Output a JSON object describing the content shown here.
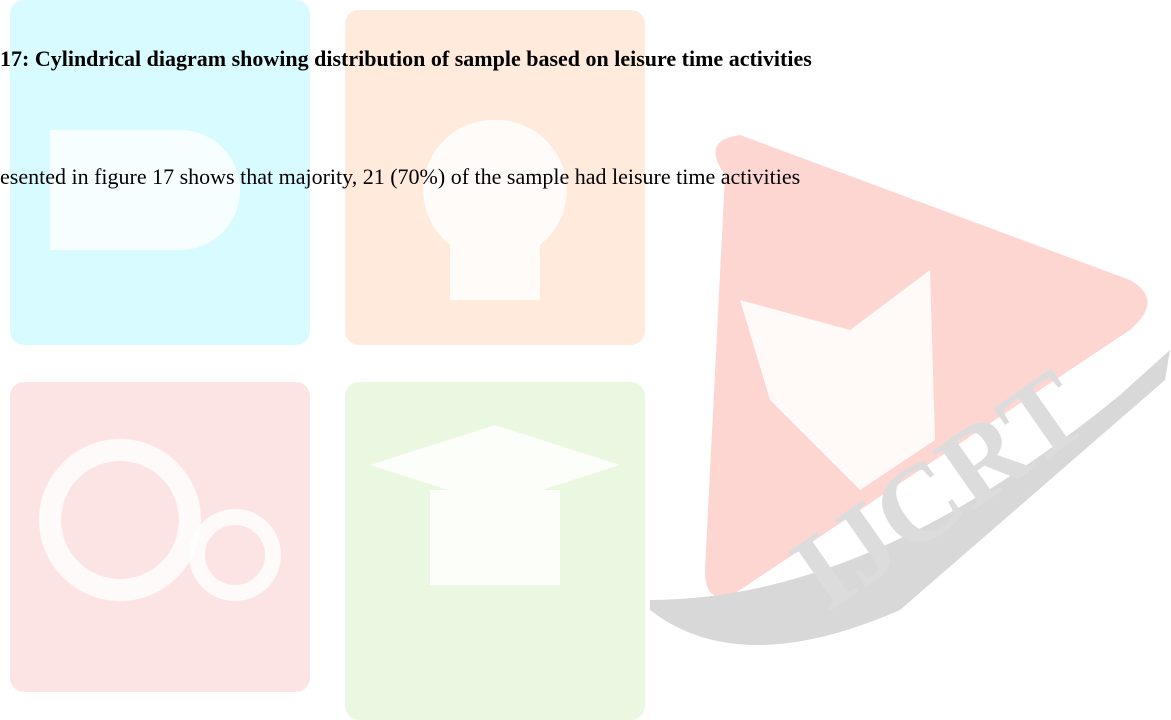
{
  "heading": "17: Cylindrical diagram showing distribution of sample based on leisure time activities",
  "paragraph": "esented in figure 17 shows that majority, 21 (70%) of the sample had leisure time activities",
  "watermark": {
    "text": "IJCRT"
  }
}
